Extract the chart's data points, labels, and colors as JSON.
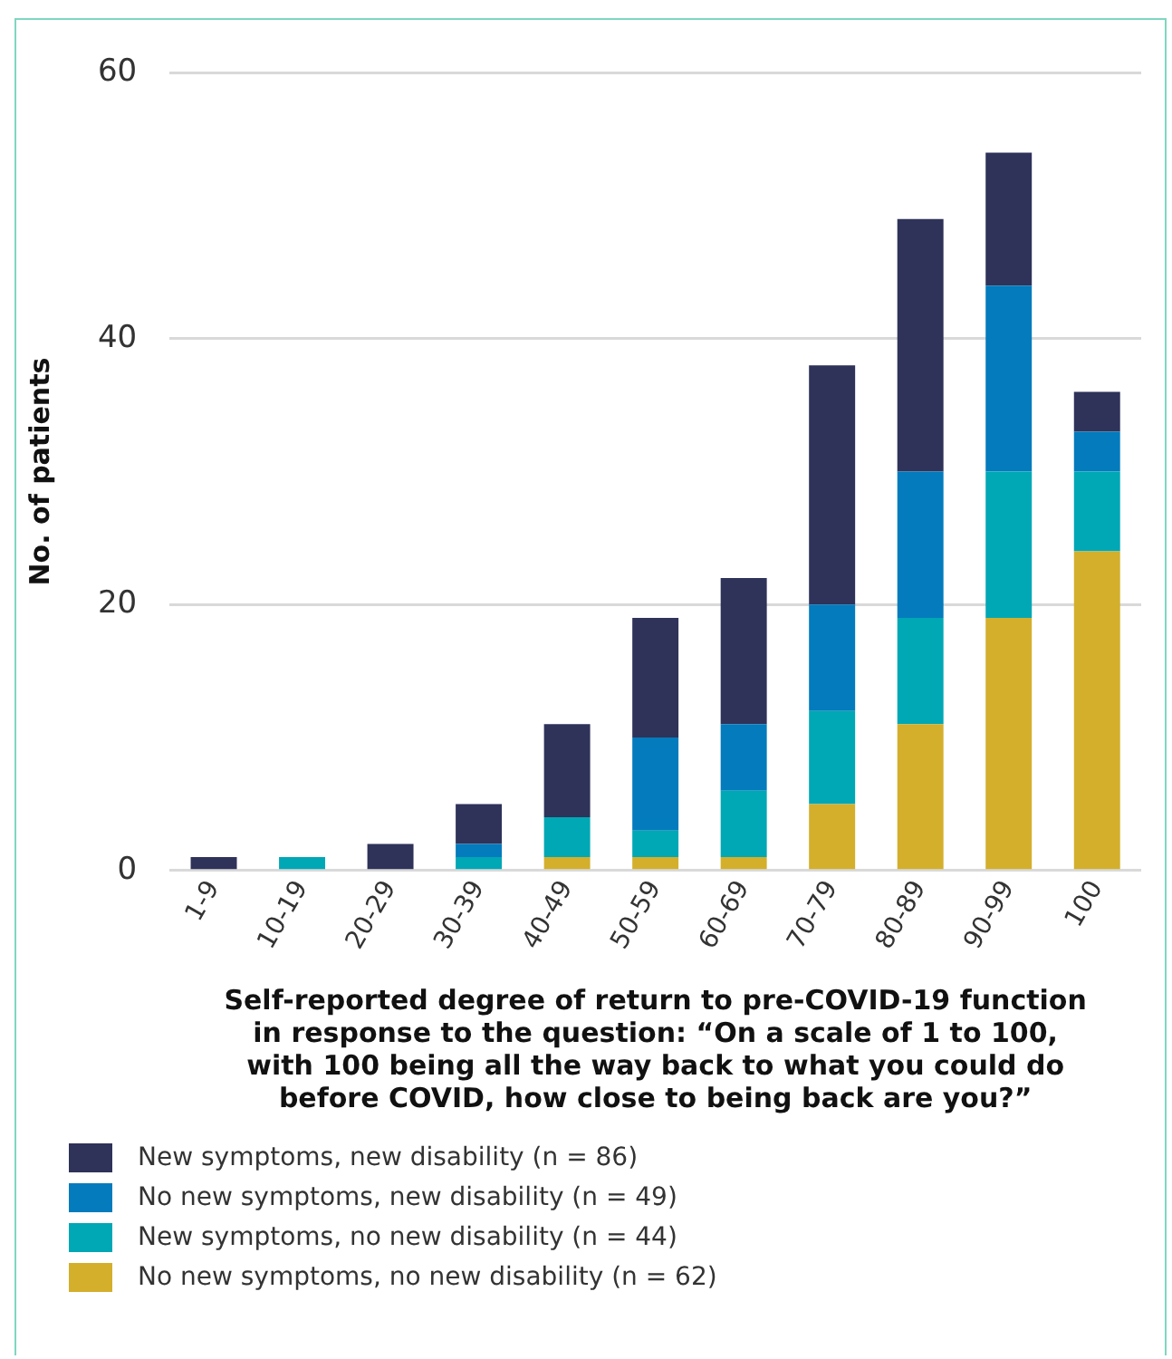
{
  "chart_data": {
    "type": "bar",
    "stacked": true,
    "xlabel": "Self-reported degree of return to pre-COVID-19 function\nin response to the question: “On a scale of 1 to 100,\nwith 100 being all the way back to what you could do\nbefore COVID, how close to being back are you?”",
    "ylabel": "No. of patients",
    "categories": [
      "1-9",
      "10-19",
      "20-29",
      "30-39",
      "40-49",
      "50-59",
      "60-69",
      "70-79",
      "80-89",
      "90-99",
      "100"
    ],
    "series": [
      {
        "name": "No new symptoms, no new disability (n = 62)",
        "color": "#d3af2c",
        "values": [
          0,
          0,
          0,
          0,
          1,
          1,
          1,
          5,
          11,
          19,
          24
        ]
      },
      {
        "name": "New symptoms, no new disability (n = 44)",
        "color": "#00a7b5",
        "values": [
          0,
          1,
          0,
          1,
          3,
          2,
          5,
          7,
          8,
          11,
          6
        ]
      },
      {
        "name": "No new symptoms, new disability (n = 49)",
        "color": "#037bbd",
        "values": [
          0,
          0,
          0,
          1,
          0,
          7,
          5,
          8,
          11,
          14,
          3
        ]
      },
      {
        "name": "New symptoms, new disability (n = 86)",
        "color": "#2f3259",
        "values": [
          1,
          0,
          2,
          3,
          7,
          9,
          11,
          18,
          19,
          10,
          3
        ]
      }
    ],
    "ylim": [
      0,
      60
    ],
    "yticks": [
      0,
      20,
      40,
      60
    ],
    "grid": "y",
    "legend": "bottom"
  }
}
